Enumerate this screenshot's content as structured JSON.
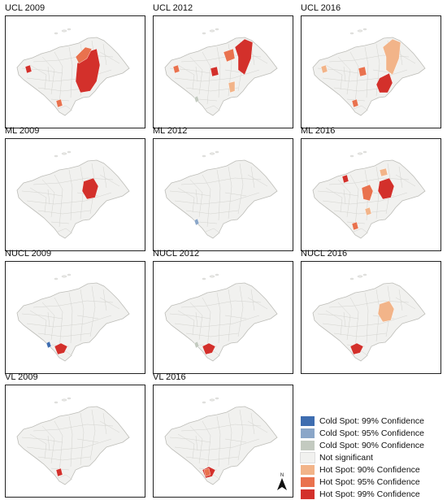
{
  "panels": [
    {
      "id": "ucl-2009",
      "title": "UCL 2009",
      "hotspots": [
        {
          "shape": "east-big",
          "level": "hot99"
        },
        {
          "shape": "east-ne",
          "level": "hot95"
        },
        {
          "shape": "west-dot",
          "level": "hot99"
        },
        {
          "shape": "south-dot",
          "level": "hot95"
        }
      ]
    },
    {
      "id": "ucl-2012",
      "title": "UCL 2012",
      "hotspots": [
        {
          "shape": "ne-strip",
          "level": "hot99"
        },
        {
          "shape": "ne-mid",
          "level": "hot95"
        },
        {
          "shape": "central-dot",
          "level": "hot99"
        },
        {
          "shape": "se-small",
          "level": "hot90"
        },
        {
          "shape": "west-dot",
          "level": "hot95"
        },
        {
          "shape": "sw-cold",
          "level": "cold90"
        }
      ]
    },
    {
      "id": "ucl-2016",
      "title": "UCL 2016",
      "hotspots": [
        {
          "shape": "ne-strip",
          "level": "hot90"
        },
        {
          "shape": "south-east",
          "level": "hot99"
        },
        {
          "shape": "central-dot",
          "level": "hot95"
        },
        {
          "shape": "south-dot",
          "level": "hot95"
        },
        {
          "shape": "west-dot",
          "level": "hot90"
        }
      ]
    },
    {
      "id": "ml-2009",
      "title": "ML 2009",
      "hotspots": [
        {
          "shape": "east-mid",
          "level": "hot99"
        }
      ]
    },
    {
      "id": "ml-2012",
      "title": "ML 2012",
      "hotspots": [
        {
          "shape": "sw-cold",
          "level": "cold95"
        }
      ]
    },
    {
      "id": "ml-2016",
      "title": "ML 2016",
      "hotspots": [
        {
          "shape": "east-mid",
          "level": "hot99"
        },
        {
          "shape": "central-red",
          "level": "hot95"
        },
        {
          "shape": "ne-dot",
          "level": "hot90"
        },
        {
          "shape": "north-dot",
          "level": "hot99"
        },
        {
          "shape": "south-east-small",
          "level": "hot90"
        },
        {
          "shape": "south-dot",
          "level": "hot95"
        }
      ]
    },
    {
      "id": "nucl-2009",
      "title": "NUCL 2009",
      "hotspots": [
        {
          "shape": "south-red",
          "level": "hot99"
        },
        {
          "shape": "sw-cold",
          "level": "cold99"
        }
      ]
    },
    {
      "id": "nucl-2012",
      "title": "NUCL 2012",
      "hotspots": [
        {
          "shape": "south-red",
          "level": "hot99"
        },
        {
          "shape": "sw-cold",
          "level": "cold90"
        }
      ]
    },
    {
      "id": "nucl-2016",
      "title": "NUCL 2016",
      "hotspots": [
        {
          "shape": "south-red",
          "level": "hot99"
        },
        {
          "shape": "east-mid",
          "level": "hot90"
        }
      ]
    },
    {
      "id": "vl-2009",
      "title": "VL 2009",
      "hotspots": [
        {
          "shape": "south-dot",
          "level": "hot99"
        }
      ]
    },
    {
      "id": "vl-2016",
      "title": "VL 2016",
      "hotspots": [
        {
          "shape": "south-red",
          "level": "hot99"
        },
        {
          "shape": "south-dot",
          "level": "hot95"
        }
      ]
    }
  ],
  "legend": [
    {
      "key": "cold99",
      "label": "Cold Spot: 99% Confidence",
      "color": "#3e6db0"
    },
    {
      "key": "cold95",
      "label": "Cold Spot: 95% Confidence",
      "color": "#8aa6c8"
    },
    {
      "key": "cold90",
      "label": "Cold Spot: 90% Confidence",
      "color": "#c3cac0"
    },
    {
      "key": "ns",
      "label": "Not significant",
      "color": "#f1f1ef"
    },
    {
      "key": "hot90",
      "label": "Hot Spot: 90% Confidence",
      "color": "#f2b489"
    },
    {
      "key": "hot95",
      "label": "Hot Spot: 95% Confidence",
      "color": "#e9724e"
    },
    {
      "key": "hot99",
      "label": "Hot Spot: 99% Confidence",
      "color": "#d3302b"
    }
  ],
  "north_arrow": {
    "label": "N"
  }
}
